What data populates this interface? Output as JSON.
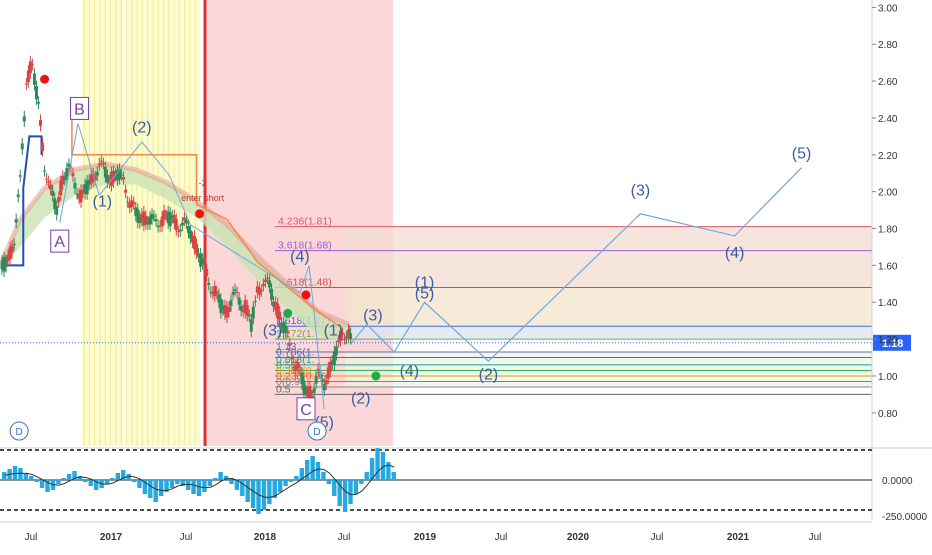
{
  "chart_data": {
    "type": "line",
    "main_pane": {
      "y_axis": {
        "range": [
          0.62,
          3.04
        ],
        "ticks": [
          "3.00",
          "2.80",
          "2.60",
          "2.40",
          "2.20",
          "2.00",
          "1.80",
          "1.60",
          "1.40",
          "1.20",
          "1.00",
          "0.80"
        ]
      },
      "x_axis": {
        "ticks": [
          "Jul",
          "2017",
          "Jul",
          "2018",
          "Jul",
          "2019",
          "Jul",
          "2020",
          "Jul",
          "2021",
          "Jul"
        ]
      },
      "last_price": {
        "value": 1.18,
        "label": "1.18",
        "color": "#2962ff"
      },
      "price_series": [
        {
          "t": 0.0,
          "v": 1.6
        },
        {
          "t": 0.2,
          "v": 1.62
        },
        {
          "t": 0.4,
          "v": 1.75
        },
        {
          "t": 0.6,
          "v": 2.05
        },
        {
          "t": 0.8,
          "v": 2.6
        },
        {
          "t": 1.0,
          "v": 2.7
        },
        {
          "t": 1.2,
          "v": 2.45
        },
        {
          "t": 1.4,
          "v": 2.15
        },
        {
          "t": 1.6,
          "v": 2.0
        },
        {
          "t": 1.8,
          "v": 1.9
        },
        {
          "t": 2.0,
          "v": 2.08
        },
        {
          "t": 2.2,
          "v": 2.12
        },
        {
          "t": 2.4,
          "v": 2.05
        },
        {
          "t": 2.6,
          "v": 1.97
        },
        {
          "t": 2.8,
          "v": 2.02
        },
        {
          "t": 3.0,
          "v": 2.08
        },
        {
          "t": 3.2,
          "v": 2.15
        },
        {
          "t": 3.4,
          "v": 2.1
        },
        {
          "t": 3.6,
          "v": 2.07
        },
        {
          "t": 3.8,
          "v": 2.1
        },
        {
          "t": 4.0,
          "v": 2.05
        },
        {
          "t": 4.2,
          "v": 1.95
        },
        {
          "t": 4.4,
          "v": 1.88
        },
        {
          "t": 4.6,
          "v": 1.85
        },
        {
          "t": 4.8,
          "v": 1.86
        },
        {
          "t": 5.0,
          "v": 1.83
        },
        {
          "t": 5.2,
          "v": 1.84
        },
        {
          "t": 5.4,
          "v": 1.87
        },
        {
          "t": 5.6,
          "v": 1.84
        },
        {
          "t": 5.8,
          "v": 1.82
        },
        {
          "t": 6.0,
          "v": 1.82
        },
        {
          "t": 6.2,
          "v": 1.78
        },
        {
          "t": 6.4,
          "v": 1.7
        },
        {
          "t": 6.6,
          "v": 1.6
        },
        {
          "t": 6.8,
          "v": 1.52
        },
        {
          "t": 7.0,
          "v": 1.45
        },
        {
          "t": 7.2,
          "v": 1.38
        },
        {
          "t": 7.4,
          "v": 1.35
        },
        {
          "t": 7.6,
          "v": 1.45
        },
        {
          "t": 7.8,
          "v": 1.4
        },
        {
          "t": 8.0,
          "v": 1.38
        },
        {
          "t": 8.2,
          "v": 1.28
        },
        {
          "t": 8.4,
          "v": 1.45
        },
        {
          "t": 8.6,
          "v": 1.52
        },
        {
          "t": 8.8,
          "v": 1.48
        },
        {
          "t": 9.0,
          "v": 1.38
        },
        {
          "t": 9.2,
          "v": 1.3
        },
        {
          "t": 9.4,
          "v": 1.2
        },
        {
          "t": 9.6,
          "v": 1.08
        },
        {
          "t": 9.8,
          "v": 1.02
        },
        {
          "t": 10.0,
          "v": 0.9
        },
        {
          "t": 10.2,
          "v": 0.92
        },
        {
          "t": 10.4,
          "v": 1.0
        },
        {
          "t": 10.6,
          "v": 0.96
        },
        {
          "t": 10.8,
          "v": 1.05
        },
        {
          "t": 11.0,
          "v": 1.12
        },
        {
          "t": 11.2,
          "v": 1.25
        },
        {
          "t": 11.4,
          "v": 1.22
        },
        {
          "t": 11.5,
          "v": 1.18
        }
      ],
      "projection_path": [
        {
          "t": 11.5,
          "v": 1.18
        },
        {
          "t": 12.0,
          "v": 1.28
        },
        {
          "t": 12.9,
          "v": 1.13
        },
        {
          "t": 13.9,
          "v": 1.4
        },
        {
          "t": 16.0,
          "v": 1.08
        },
        {
          "t": 21.0,
          "v": 1.88
        },
        {
          "t": 24.1,
          "v": 1.76
        },
        {
          "t": 26.3,
          "v": 2.13
        }
      ],
      "fib_levels": [
        {
          "label": "4.236(1.81)",
          "value": 1.81,
          "color": "#e05a6a"
        },
        {
          "label": "3.618(1.68)",
          "value": 1.68,
          "color": "#9c5fd0"
        },
        {
          "label": "2.618(1.48)",
          "value": 1.48,
          "color": "#d94b4b"
        },
        {
          "label": "1.618(1.27)",
          "value": 1.27,
          "color": "#3f6fd8"
        },
        {
          "label": "1.272(1.",
          "value": 1.2,
          "color": "#6cae3e"
        },
        {
          "label": "1.13",
          "value": 1.13,
          "color": "#6b6bb0"
        },
        {
          "label": "0.786(1.",
          "value": 1.1,
          "color": "#3a6fbf"
        },
        {
          "label": "0.618(1.",
          "value": 1.06,
          "color": "#18a090"
        },
        {
          "label": "0.5(1.",
          "value": 1.03,
          "color": "#38b05a"
        },
        {
          "label": "0.382(0.",
          "value": 1.0,
          "color": "#e0a000"
        },
        {
          "label": "0.236(0.96",
          "value": 0.97,
          "color": "#f05a28"
        },
        {
          "label": "0(0.9",
          "value": 0.94,
          "color": "#888888"
        },
        {
          "label": "0.5",
          "value": 0.9,
          "color": "#666666"
        }
      ],
      "wave_labels": [
        {
          "text": "(2)",
          "t": 4.6,
          "v": 2.32
        },
        {
          "text": "(1)",
          "t": 3.3,
          "v": 1.92
        },
        {
          "text": "(4)",
          "t": 9.8,
          "v": 1.62
        },
        {
          "text": "(3)",
          "t": 8.9,
          "v": 1.22
        },
        {
          "text": "(3)",
          "t": 12.2,
          "v": 1.3
        },
        {
          "text": "(1)",
          "t": 10.9,
          "v": 1.22
        },
        {
          "text": "(2)",
          "t": 11.8,
          "v": 0.85
        },
        {
          "text": "(5)",
          "t": 10.6,
          "v": 0.72
        },
        {
          "text": "(1)",
          "t": 13.9,
          "v": 1.48
        },
        {
          "text": "(5)",
          "t": 13.9,
          "v": 1.42
        },
        {
          "text": "(4)",
          "t": 13.4,
          "v": 1.0
        },
        {
          "text": "(2)",
          "t": 16.0,
          "v": 0.98
        },
        {
          "text": "(3)",
          "t": 21.0,
          "v": 1.98
        },
        {
          "text": "(4)",
          "t": 24.1,
          "v": 1.64
        },
        {
          "text": "(5)",
          "t": 26.3,
          "v": 2.18
        }
      ],
      "abc_labels": [
        {
          "text": "B",
          "t": 2.55,
          "v": 2.43,
          "color": "#7a3fa0"
        },
        {
          "text": "A",
          "t": 1.9,
          "v": 1.71,
          "color": "#7a3fa0"
        },
        {
          "text": "C",
          "t": 10.0,
          "v": 0.8,
          "color": "#7a3fa0"
        }
      ],
      "annotations": [
        {
          "text": "-2",
          "t": 6.6,
          "v": 2.03
        },
        {
          "text": "enter short",
          "t": 6.6,
          "v": 1.95
        }
      ],
      "markers": [
        {
          "t": 1.4,
          "v": 2.61,
          "color": "#ee1111"
        },
        {
          "t": 6.5,
          "v": 1.88,
          "color": "#ee1111"
        },
        {
          "t": 10.0,
          "v": 1.44,
          "color": "#ee1111"
        },
        {
          "t": 9.4,
          "v": 1.34,
          "color": "#22aa44"
        },
        {
          "t": 12.3,
          "v": 1.0,
          "color": "#22aa44"
        }
      ],
      "dividend_badges": [
        {
          "label": "D",
          "t": 0.3
        },
        {
          "label": "D",
          "t": 10.1
        }
      ]
    },
    "oscillator_pane": {
      "y_axis": {
        "ticks": [
          "0.0000",
          "-250.0000"
        ]
      },
      "histogram": [
        40,
        55,
        70,
        60,
        35,
        20,
        -10,
        -40,
        -60,
        -50,
        -20,
        10,
        30,
        45,
        20,
        -10,
        -30,
        -50,
        -40,
        -20,
        10,
        35,
        50,
        30,
        -10,
        -40,
        -70,
        -90,
        -110,
        -80,
        -60,
        -40,
        -20,
        -30,
        -50,
        -70,
        -80,
        -60,
        -30,
        10,
        40,
        20,
        -20,
        -50,
        -80,
        -110,
        -140,
        -170,
        -150,
        -120,
        -90,
        -60,
        -30,
        -10,
        20,
        60,
        100,
        120,
        90,
        40,
        -20,
        -80,
        -130,
        -160,
        -120,
        -70,
        -20,
        40,
        110,
        160,
        140,
        90,
        40
      ],
      "dashed_levels": [
        150,
        -150
      ]
    }
  }
}
